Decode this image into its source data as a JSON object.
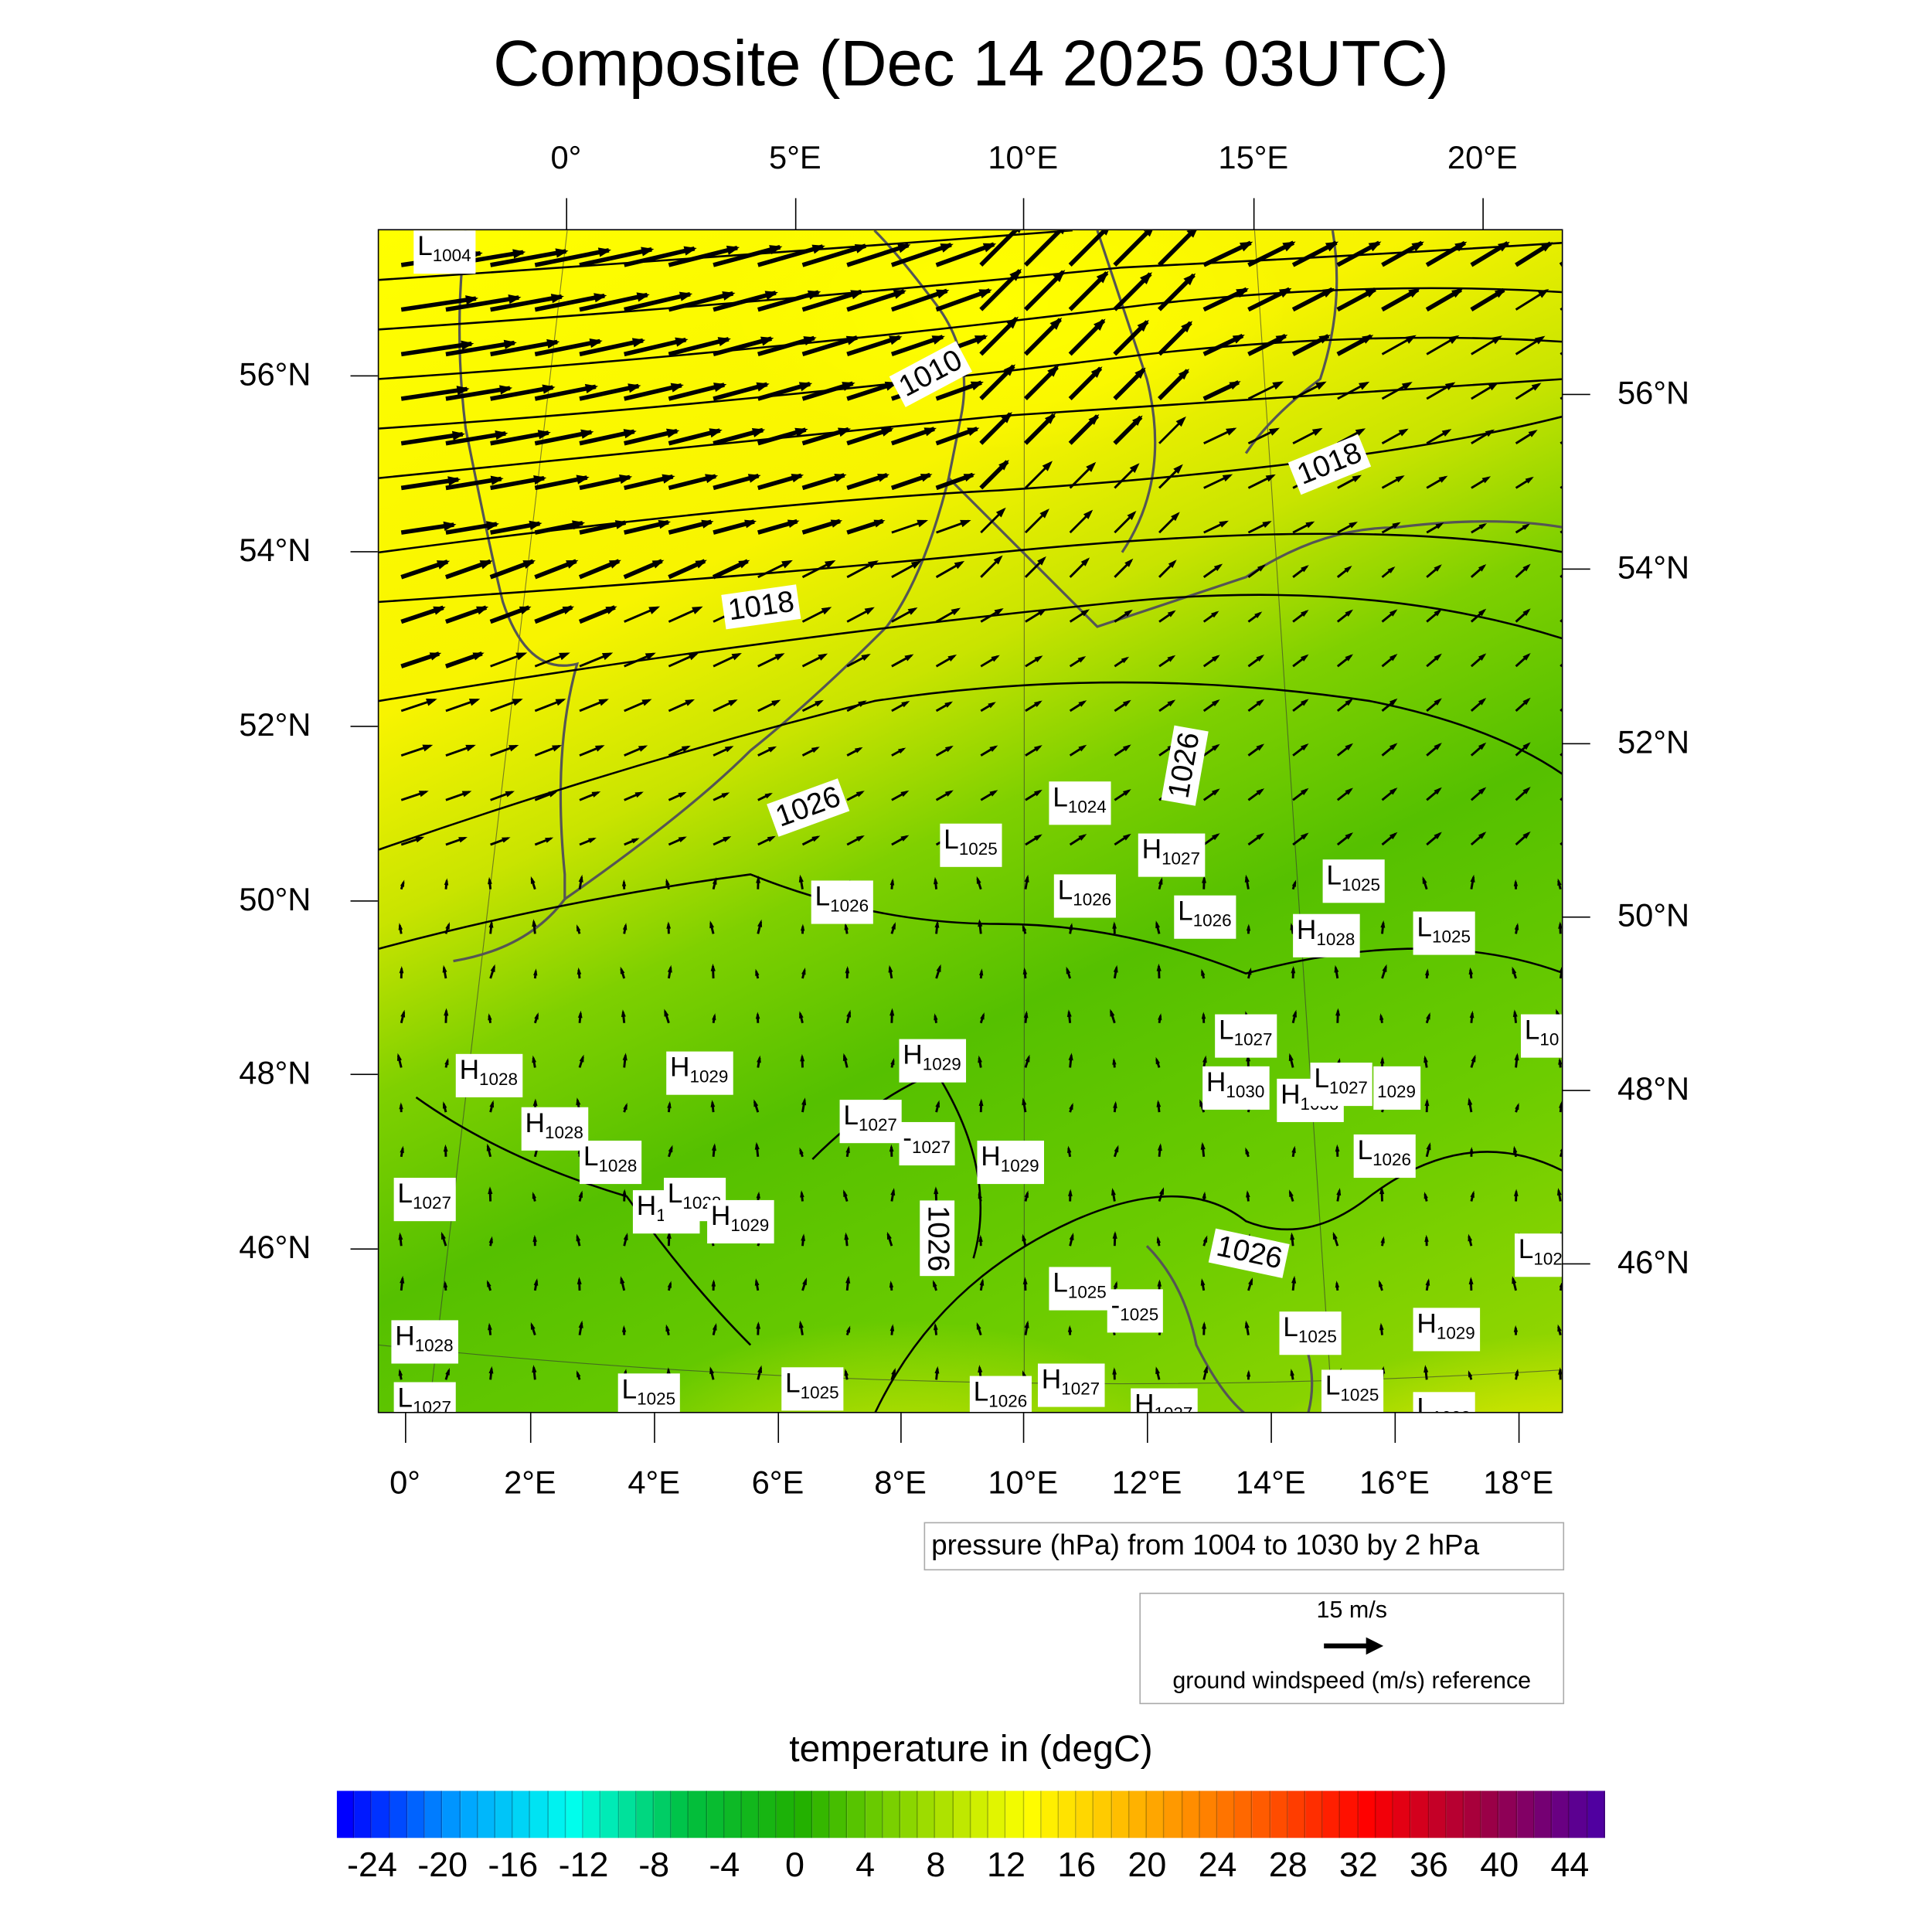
{
  "title": "Composite (Dec 14 2025 03UTC)",
  "axes": {
    "top_lon": [
      "0°",
      "5°E",
      "10°E",
      "15°E",
      "20°E"
    ],
    "bottom_lon": [
      "0°",
      "2°E",
      "4°E",
      "6°E",
      "8°E",
      "10°E",
      "12°E",
      "14°E",
      "16°E",
      "18°E"
    ],
    "left_lat": [
      "56°N",
      "54°N",
      "52°N",
      "50°N",
      "48°N",
      "46°N"
    ],
    "right_lat": [
      "56°N",
      "54°N",
      "52°N",
      "50°N",
      "48°N",
      "46°N"
    ]
  },
  "pressure_centers": [
    {
      "t": "L",
      "v": "1004"
    },
    {
      "t": "L",
      "v": "1024"
    },
    {
      "t": "L",
      "v": "1025"
    },
    {
      "t": "H",
      "v": "1027"
    },
    {
      "t": "L",
      "v": "1026"
    },
    {
      "t": "L",
      "v": "1026"
    },
    {
      "t": "L",
      "v": "1026"
    },
    {
      "t": "L",
      "v": "1025"
    },
    {
      "t": "H",
      "v": "1028"
    },
    {
      "t": "L",
      "v": "1025"
    },
    {
      "t": "L",
      "v": "10"
    },
    {
      "t": "L",
      "v": "1027"
    },
    {
      "t": "H",
      "v": "1029"
    },
    {
      "t": "H",
      "v": "1028"
    },
    {
      "t": "H",
      "v": "1029"
    },
    {
      "t": "H",
      "v": "1030"
    },
    {
      "t": "H",
      "v": "1030"
    },
    {
      "t": "L",
      "v": "1027"
    },
    {
      "t": "",
      "v": "1029"
    },
    {
      "t": "L",
      "v": "1027"
    },
    {
      "t": "-",
      "v": "1027"
    },
    {
      "t": "H",
      "v": "1029"
    },
    {
      "t": "H",
      "v": "1028"
    },
    {
      "t": "L",
      "v": "1028"
    },
    {
      "t": "L",
      "v": "1027"
    },
    {
      "t": "H",
      "v": "1028"
    },
    {
      "t": "L",
      "v": "1028"
    },
    {
      "t": "H",
      "v": "1029"
    },
    {
      "t": "L",
      "v": "1026"
    },
    {
      "t": "L",
      "v": "102"
    },
    {
      "t": "L",
      "v": "1025"
    },
    {
      "t": "-",
      "v": "1025"
    },
    {
      "t": "H",
      "v": "1028"
    },
    {
      "t": "H",
      "v": "1029"
    },
    {
      "t": "L",
      "v": "1025"
    },
    {
      "t": "L",
      "v": "1025"
    },
    {
      "t": "L",
      "v": "1025"
    },
    {
      "t": "L",
      "v": "1026"
    },
    {
      "t": "H",
      "v": "1027"
    },
    {
      "t": "H",
      "v": "1027"
    },
    {
      "t": "L",
      "v": "1025"
    },
    {
      "t": "L",
      "v": "1027"
    },
    {
      "t": "L",
      "v": "1023"
    }
  ],
  "contour_labels": [
    "1010",
    "1018",
    "1018",
    "1026",
    "1026",
    "1026",
    "1026"
  ],
  "pressure_legend": "pressure (hPa) from 1004 to 1030 by 2 hPa",
  "wind_legend": {
    "speed": "15 m/s",
    "label": "ground windspeed (m/s) reference"
  },
  "colorbar": {
    "title": "temperature in (degC)",
    "min": -26,
    "max": 46,
    "step": 1,
    "labels": [
      "-24",
      "-20",
      "-16",
      "-12",
      "-8",
      "-4",
      "0",
      "4",
      "8",
      "12",
      "16",
      "20",
      "24",
      "28",
      "32",
      "36",
      "40",
      "44"
    ],
    "stops": [
      "#0000ff",
      "#00a0ff",
      "#00ffee",
      "#00c040",
      "#20b000",
      "#90d800",
      "#ffff00",
      "#ffb000",
      "#ff6000",
      "#ff0000",
      "#a00040",
      "#5000a0"
    ]
  },
  "colors": {
    "contour": "#000000",
    "coast": "#555555"
  }
}
